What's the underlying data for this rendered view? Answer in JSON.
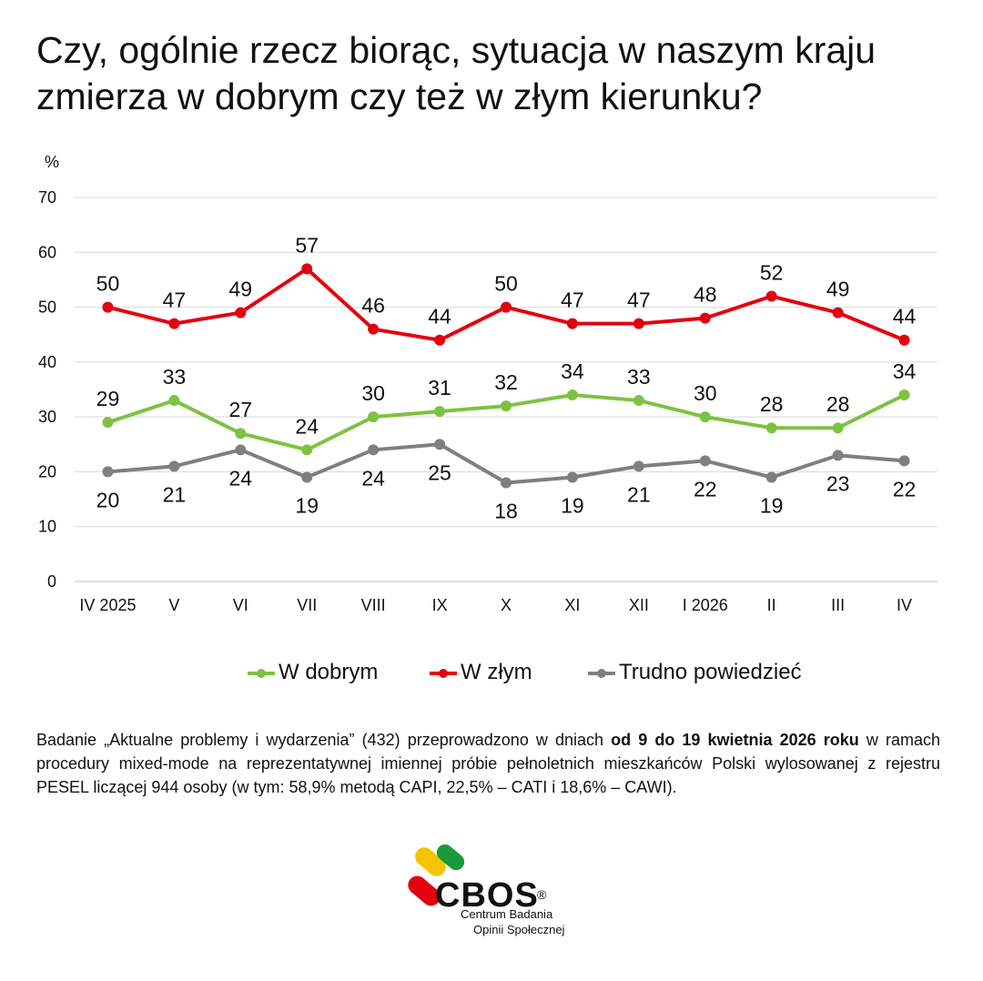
{
  "title": "Czy, ogólnie rzecz biorąc, sytuacja w naszym kraju zmierza w dobrym czy też w złym kierunku?",
  "chart_data": {
    "type": "line",
    "unit_label": "%",
    "categories": [
      "IV 2025",
      "V",
      "VI",
      "VII",
      "VIII",
      "IX",
      "X",
      "XI",
      "XII",
      "I 2026",
      "II",
      "III",
      "IV"
    ],
    "ylim": [
      0,
      70
    ],
    "yticks": [
      0,
      10,
      20,
      30,
      40,
      50,
      60,
      70
    ],
    "grid": true,
    "legend_position": "bottom",
    "series": [
      {
        "name": "W dobrym",
        "color": "#7dc242",
        "labels": "above",
        "values": [
          29,
          33,
          27,
          24,
          30,
          31,
          32,
          34,
          33,
          30,
          28,
          28,
          34
        ]
      },
      {
        "name": "W złym",
        "color": "#e3000f",
        "labels": "above",
        "values": [
          50,
          47,
          49,
          57,
          46,
          44,
          50,
          47,
          47,
          48,
          52,
          49,
          44
        ]
      },
      {
        "name": "Trudno powiedzieć",
        "color": "#7f7f7f",
        "labels": "below",
        "values": [
          20,
          21,
          24,
          19,
          24,
          25,
          18,
          19,
          21,
          22,
          19,
          23,
          22
        ]
      }
    ]
  },
  "footnote": {
    "text_before": "Badanie „Aktualne problemy i wydarzenia” (432) przeprowadzono w dniach ",
    "bold": "od 9 do 19 kwietnia 2026 roku",
    "text_after": " w ramach procedury mixed-mode na reprezentatywnej imiennej próbie pełnoletnich mieszkańców Polski wylosowanej z rejestru PESEL liczącej 944 osoby (w tym: 58,9% metodą CAPI, 22,5% – CATI i 18,6% – CAWI)."
  },
  "logo": {
    "name": "CBOS",
    "registered": "®",
    "subtitle_line1": "Centrum Badania",
    "subtitle_line2": "Opinii Społecznej",
    "colors": [
      "#f5c400",
      "#1a9a3a",
      "#e3000f"
    ]
  }
}
